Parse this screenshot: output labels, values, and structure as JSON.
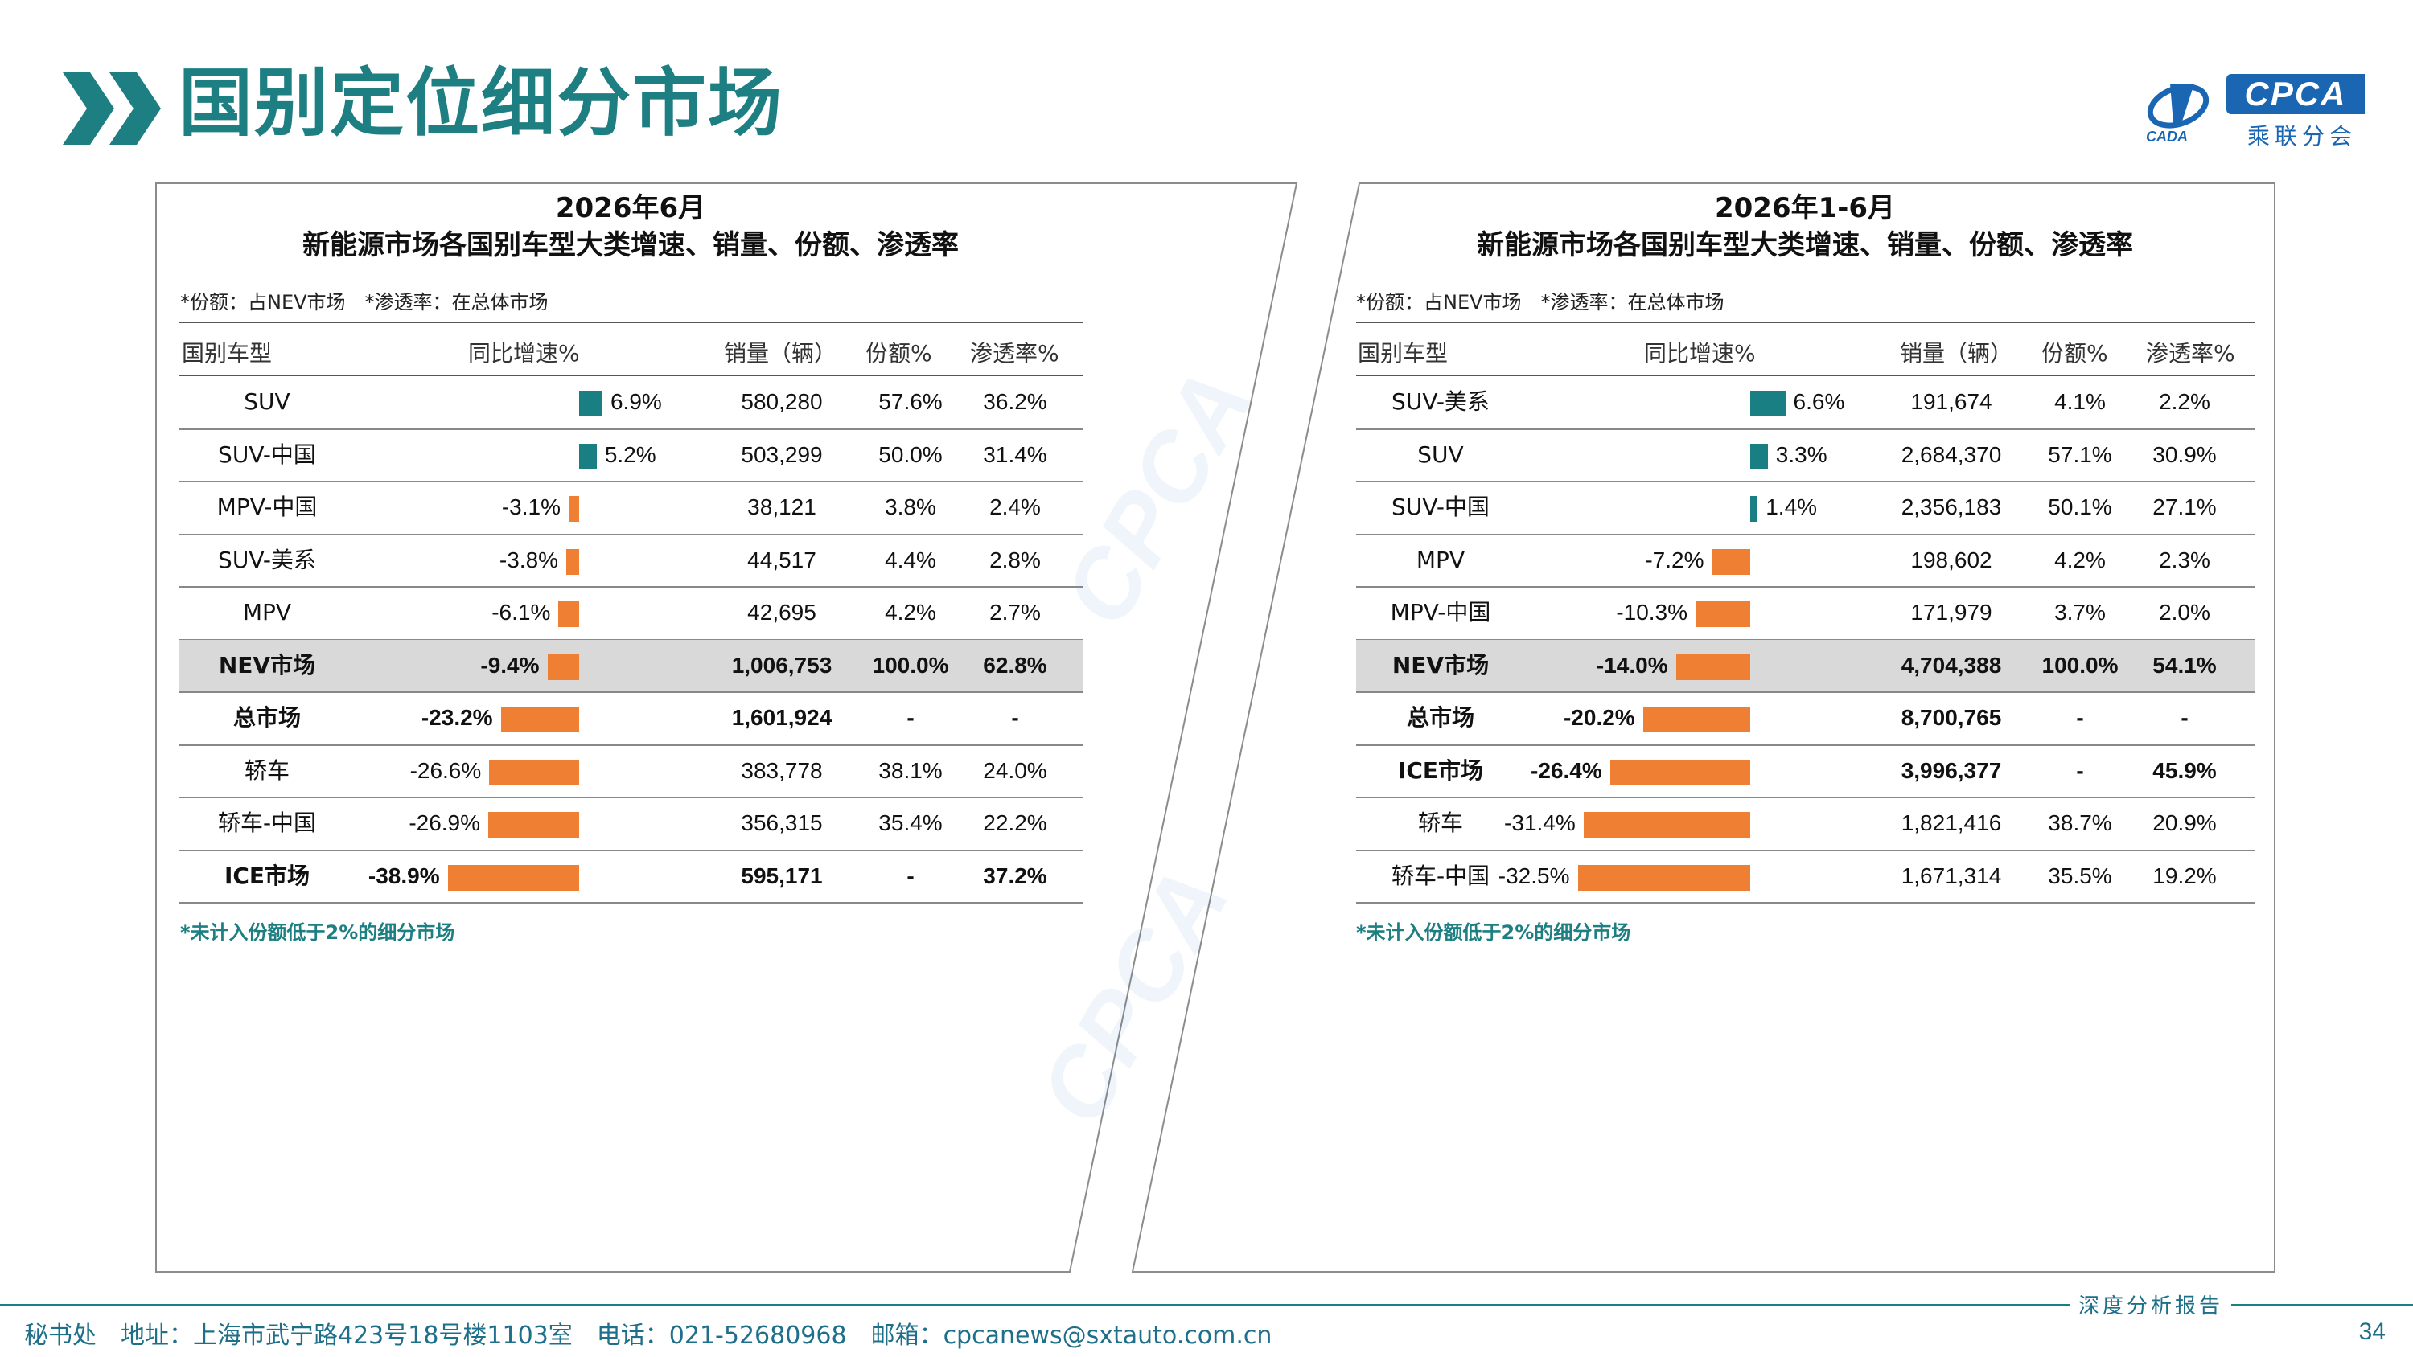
{
  "title": "国别定位细分市场",
  "logo": {
    "brand": "CPCA",
    "cn": "乘联分会",
    "sub": "CADA"
  },
  "colors": {
    "accent": "#1e7f82",
    "positive": "#1a7f82",
    "negative": "#ee7f33",
    "highlight_row": "#d9d9d9"
  },
  "left": {
    "title1": "2026年6月",
    "title2": "新能源市场各国别车型大类增速、销量、份额、渗透率",
    "note": "*份额：占NEV市场　*渗透率：在总体市场",
    "headers": [
      "国别车型",
      "同比增速%",
      "销量（辆）",
      "份额%",
      "渗透率%"
    ],
    "rows": [
      {
        "name": "SUV",
        "growth": "6.9%",
        "g": 6.9,
        "sales": "580,280",
        "share": "57.6%",
        "pen": "36.2%"
      },
      {
        "name": "SUV-中国",
        "growth": "5.2%",
        "g": 5.2,
        "sales": "503,299",
        "share": "50.0%",
        "pen": "31.4%"
      },
      {
        "name": "MPV-中国",
        "growth": "-3.1%",
        "g": -3.1,
        "sales": "38,121",
        "share": "3.8%",
        "pen": "2.4%"
      },
      {
        "name": "SUV-美系",
        "growth": "-3.8%",
        "g": -3.8,
        "sales": "44,517",
        "share": "4.4%",
        "pen": "2.8%"
      },
      {
        "name": "MPV",
        "growth": "-6.1%",
        "g": -6.1,
        "sales": "42,695",
        "share": "4.2%",
        "pen": "2.7%"
      },
      {
        "name": "NEV市场",
        "growth": "-9.4%",
        "g": -9.4,
        "sales": "1,006,753",
        "share": "100.0%",
        "pen": "62.8%",
        "bold": true,
        "hl": true
      },
      {
        "name": "总市场",
        "growth": "-23.2%",
        "g": -23.2,
        "sales": "1,601,924",
        "share": "-",
        "pen": "-",
        "bold": true
      },
      {
        "name": "轿车",
        "growth": "-26.6%",
        "g": -26.6,
        "sales": "383,778",
        "share": "38.1%",
        "pen": "24.0%"
      },
      {
        "name": "轿车-中国",
        "growth": "-26.9%",
        "g": -26.9,
        "sales": "356,315",
        "share": "35.4%",
        "pen": "22.2%"
      },
      {
        "name": "ICE市场",
        "growth": "-38.9%",
        "g": -38.9,
        "sales": "595,171",
        "share": "-",
        "pen": "37.2%",
        "bold": true
      }
    ],
    "footnote": "*未计入份额低于2%的细分市场"
  },
  "right": {
    "title1": "2026年1-6月",
    "title2": "新能源市场各国别车型大类增速、销量、份额、渗透率",
    "note": "*份额：占NEV市场　*渗透率：在总体市场",
    "headers": [
      "国别车型",
      "同比增速%",
      "销量（辆）",
      "份额%",
      "渗透率%"
    ],
    "rows": [
      {
        "name": "SUV-美系",
        "growth": "6.6%",
        "g": 6.6,
        "sales": "191,674",
        "share": "4.1%",
        "pen": "2.2%"
      },
      {
        "name": "SUV",
        "growth": "3.3%",
        "g": 3.3,
        "sales": "2,684,370",
        "share": "57.1%",
        "pen": "30.9%"
      },
      {
        "name": "SUV-中国",
        "growth": "1.4%",
        "g": 1.4,
        "sales": "2,356,183",
        "share": "50.1%",
        "pen": "27.1%"
      },
      {
        "name": "MPV",
        "growth": "-7.2%",
        "g": -7.2,
        "sales": "198,602",
        "share": "4.2%",
        "pen": "2.3%"
      },
      {
        "name": "MPV-中国",
        "growth": "-10.3%",
        "g": -10.3,
        "sales": "171,979",
        "share": "3.7%",
        "pen": "2.0%"
      },
      {
        "name": "NEV市场",
        "growth": "-14.0%",
        "g": -14.0,
        "sales": "4,704,388",
        "share": "100.0%",
        "pen": "54.1%",
        "bold": true,
        "hl": true
      },
      {
        "name": "总市场",
        "growth": "-20.2%",
        "g": -20.2,
        "sales": "8,700,765",
        "share": "-",
        "pen": "-",
        "bold": true
      },
      {
        "name": "ICE市场",
        "growth": "-26.4%",
        "g": -26.4,
        "sales": "3,996,377",
        "share": "-",
        "pen": "45.9%",
        "bold": true
      },
      {
        "name": "轿车",
        "growth": "-31.4%",
        "g": -31.4,
        "sales": "1,821,416",
        "share": "38.7%",
        "pen": "20.9%"
      },
      {
        "name": "轿车-中国",
        "growth": "-32.5%",
        "g": -32.5,
        "sales": "1,671,314",
        "share": "35.5%",
        "pen": "19.2%"
      }
    ],
    "footnote": "*未计入份额低于2%的细分市场"
  },
  "footer": {
    "text": "秘书处　地址：上海市武宁路423号18号楼1103室　电话：021-52680968　邮箱：cpcanews@sxtauto.com.cn",
    "report": "深度分析报告",
    "page": "34"
  }
}
